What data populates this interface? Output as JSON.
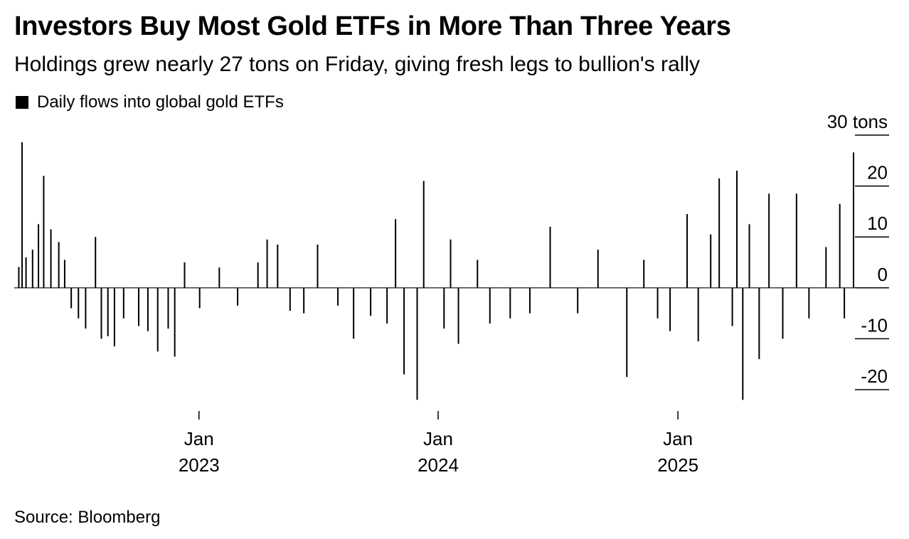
{
  "header": {
    "title": "Investors Buy Most Gold ETFs in More Than Three Years",
    "subtitle": "Holdings grew nearly 27 tons on Friday, giving fresh legs to bullion's rally"
  },
  "legend": {
    "label": "Daily flows into global gold ETFs",
    "color": "#000000"
  },
  "footer": {
    "source": "Source: Bloomberg"
  },
  "chart_data": {
    "type": "bar",
    "title": "Investors Buy Most Gold ETFs in More Than Three Years",
    "subtitle": "Holdings grew nearly 27 tons on Friday, giving fresh legs to bullion's rally",
    "ylabel": "tons",
    "ylim": [
      -20,
      30
    ],
    "y_ticks": [
      30,
      20,
      10,
      0,
      -10,
      -20
    ],
    "y_tick_labels": [
      "30 tons",
      "20",
      "10",
      "0",
      "-10",
      "-20"
    ],
    "x_range": [
      "2022-03-25",
      "2025-09-26"
    ],
    "x_ticks": [
      {
        "date": "2023-01-01",
        "month": "Jan",
        "year": "2023"
      },
      {
        "date": "2024-01-01",
        "month": "Jan",
        "year": "2024"
      },
      {
        "date": "2025-01-01",
        "month": "Jan",
        "year": "2025"
      }
    ],
    "legend": "top-left",
    "grid": false,
    "series": [
      {
        "name": "Daily flows into global gold ETFs",
        "color": "#000000",
        "points": [
          {
            "x": "2022-04-01",
            "y": 4.1
          },
          {
            "x": "2022-04-06",
            "y": 28.6
          },
          {
            "x": "2022-04-12",
            "y": 6.0
          },
          {
            "x": "2022-04-22",
            "y": 7.5
          },
          {
            "x": "2022-05-01",
            "y": 12.5
          },
          {
            "x": "2022-05-09",
            "y": 22.0
          },
          {
            "x": "2022-05-20",
            "y": 11.5
          },
          {
            "x": "2022-06-01",
            "y": 9.0
          },
          {
            "x": "2022-06-10",
            "y": 5.5
          },
          {
            "x": "2022-06-20",
            "y": -4.0
          },
          {
            "x": "2022-07-01",
            "y": -6.0
          },
          {
            "x": "2022-07-12",
            "y": -8.0
          },
          {
            "x": "2022-07-27",
            "y": 10.0
          },
          {
            "x": "2022-08-05",
            "y": -10.0
          },
          {
            "x": "2022-08-15",
            "y": -9.5
          },
          {
            "x": "2022-08-25",
            "y": -11.5
          },
          {
            "x": "2022-09-08",
            "y": -6.0
          },
          {
            "x": "2022-10-01",
            "y": -7.5
          },
          {
            "x": "2022-10-15",
            "y": -8.5
          },
          {
            "x": "2022-10-30",
            "y": -12.5
          },
          {
            "x": "2022-11-15",
            "y": -8.0
          },
          {
            "x": "2022-11-25",
            "y": -13.5
          },
          {
            "x": "2022-12-10",
            "y": 5.0
          },
          {
            "x": "2023-01-02",
            "y": -4.0
          },
          {
            "x": "2023-02-01",
            "y": 4.0
          },
          {
            "x": "2023-03-01",
            "y": -3.5
          },
          {
            "x": "2023-04-01",
            "y": 5.0
          },
          {
            "x": "2023-04-15",
            "y": 9.5
          },
          {
            "x": "2023-05-01",
            "y": 8.5
          },
          {
            "x": "2023-05-20",
            "y": -4.5
          },
          {
            "x": "2023-06-10",
            "y": -5.0
          },
          {
            "x": "2023-07-01",
            "y": 8.5
          },
          {
            "x": "2023-08-01",
            "y": -3.5
          },
          {
            "x": "2023-08-25",
            "y": -10.0
          },
          {
            "x": "2023-09-20",
            "y": -5.5
          },
          {
            "x": "2023-10-15",
            "y": -7.0
          },
          {
            "x": "2023-10-28",
            "y": 13.5
          },
          {
            "x": "2023-11-10",
            "y": -17.0
          },
          {
            "x": "2023-11-30",
            "y": -22.0
          },
          {
            "x": "2023-12-10",
            "y": 21.0
          },
          {
            "x": "2024-01-10",
            "y": -8.0
          },
          {
            "x": "2024-01-20",
            "y": 9.5
          },
          {
            "x": "2024-02-01",
            "y": -11.0
          },
          {
            "x": "2024-03-01",
            "y": 5.5
          },
          {
            "x": "2024-03-20",
            "y": -7.0
          },
          {
            "x": "2024-04-20",
            "y": -6.0
          },
          {
            "x": "2024-05-20",
            "y": -5.0
          },
          {
            "x": "2024-06-20",
            "y": 12.0
          },
          {
            "x": "2024-08-01",
            "y": -5.0
          },
          {
            "x": "2024-09-01",
            "y": 7.5
          },
          {
            "x": "2024-10-15",
            "y": -17.5
          },
          {
            "x": "2024-11-10",
            "y": 5.5
          },
          {
            "x": "2024-12-01",
            "y": -6.0
          },
          {
            "x": "2024-12-20",
            "y": -8.5
          },
          {
            "x": "2025-01-15",
            "y": 14.5
          },
          {
            "x": "2025-02-01",
            "y": -10.5
          },
          {
            "x": "2025-02-20",
            "y": 10.5
          },
          {
            "x": "2025-03-05",
            "y": 21.5
          },
          {
            "x": "2025-03-25",
            "y": -7.5
          },
          {
            "x": "2025-04-01",
            "y": 23.0
          },
          {
            "x": "2025-04-10",
            "y": -22.0
          },
          {
            "x": "2025-04-20",
            "y": 12.5
          },
          {
            "x": "2025-05-05",
            "y": -14.0
          },
          {
            "x": "2025-05-20",
            "y": 18.5
          },
          {
            "x": "2025-06-10",
            "y": -10.0
          },
          {
            "x": "2025-07-01",
            "y": 18.5
          },
          {
            "x": "2025-07-20",
            "y": -6.0
          },
          {
            "x": "2025-08-15",
            "y": 8.0
          },
          {
            "x": "2025-09-05",
            "y": 16.5
          },
          {
            "x": "2025-09-12",
            "y": -6.0
          },
          {
            "x": "2025-09-26",
            "y": 26.6
          }
        ]
      }
    ]
  }
}
